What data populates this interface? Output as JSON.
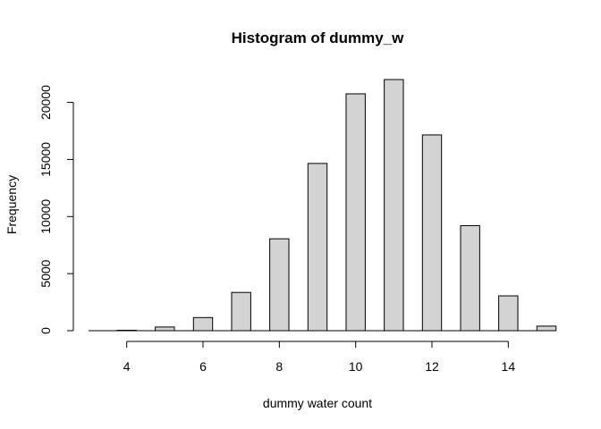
{
  "chart_data": {
    "type": "bar",
    "title": "Histogram of dummy_w",
    "xlabel": "dummy water count",
    "ylabel": "Frequency",
    "xlim": [
      3,
      15
    ],
    "ylim": [
      0,
      22000
    ],
    "x_ticks": [
      4,
      6,
      8,
      10,
      12,
      14
    ],
    "y_ticks": [
      0,
      5000,
      10000,
      15000,
      20000
    ],
    "bar_fill": "#d3d3d3",
    "grid": false,
    "legend": "none",
    "bins": [
      {
        "x": 4,
        "value": 30
      },
      {
        "x": 5,
        "value": 320
      },
      {
        "x": 6,
        "value": 1150
      },
      {
        "x": 7,
        "value": 3350
      },
      {
        "x": 8,
        "value": 8050
      },
      {
        "x": 9,
        "value": 14650
      },
      {
        "x": 10,
        "value": 20750
      },
      {
        "x": 11,
        "value": 22000
      },
      {
        "x": 12,
        "value": 17150
      },
      {
        "x": 13,
        "value": 9200
      },
      {
        "x": 14,
        "value": 3050
      },
      {
        "x": 15,
        "value": 400
      }
    ]
  }
}
